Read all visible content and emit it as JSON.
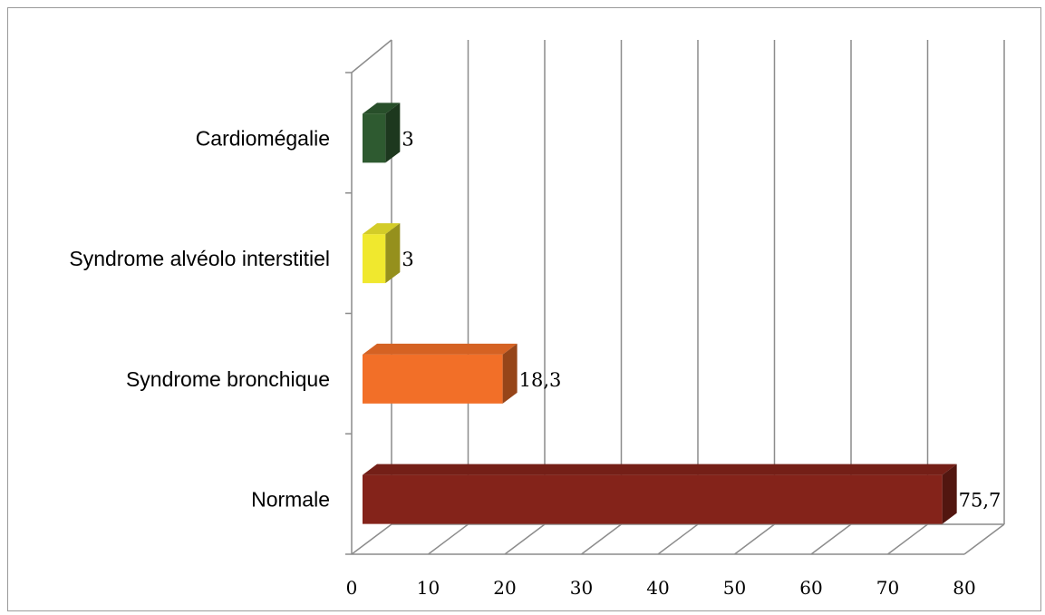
{
  "chart_data": {
    "type": "bar",
    "orientation": "horizontal",
    "style": "3d",
    "categories": [
      "Normale",
      "Syndrome bronchique",
      "Syndrome alvéolo interstitiel",
      "Cardiomégalie"
    ],
    "values": [
      75.7,
      18.3,
      3,
      3
    ],
    "value_labels": [
      "75,7",
      "18,3",
      "3",
      "3"
    ],
    "bar_colors": [
      "#84231a",
      "#f26f28",
      "#f0e82e",
      "#2e5a30"
    ],
    "xlim": [
      0,
      80
    ],
    "x_ticks": [
      0,
      10,
      20,
      30,
      40,
      50,
      60,
      70,
      80
    ],
    "grid": true,
    "legend": "none",
    "title": "",
    "xlabel": "",
    "ylabel": ""
  }
}
